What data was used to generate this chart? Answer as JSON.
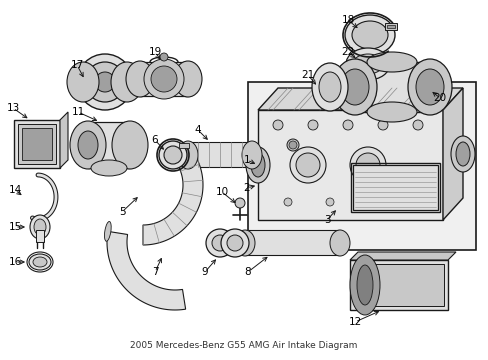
{
  "title": "2005 Mercedes-Benz G55 AMG Air Intake Diagram",
  "bg": "#ffffff",
  "lc": "#1a1a1a",
  "gray1": "#c8c8c8",
  "gray2": "#e0e0e0",
  "gray3": "#a0a0a0",
  "box_bg": "#ebebeb",
  "figw": 4.89,
  "figh": 3.6,
  "dpi": 100
}
